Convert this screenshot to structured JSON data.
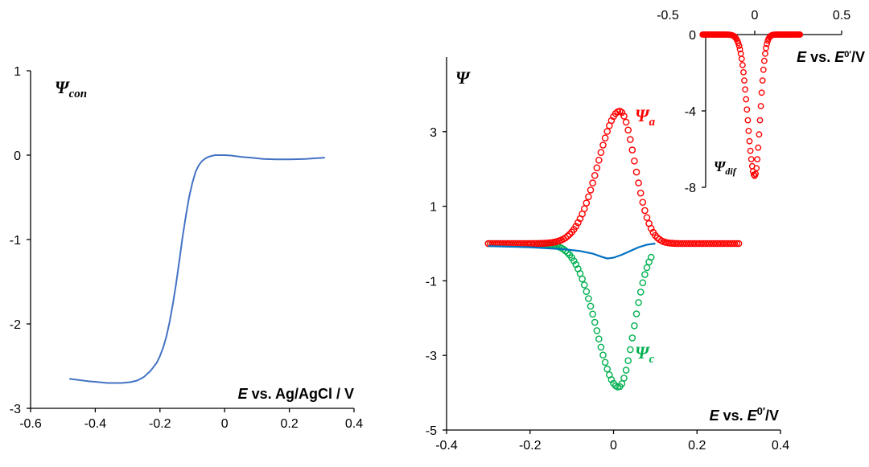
{
  "chart_data": [
    {
      "type": "line",
      "id": "left",
      "title": "",
      "ylabel_sym": "Ψ",
      "ylabel_sub": "con",
      "xlabel_e": "E",
      "xlabel_rest": " vs. Ag/AgCl / V",
      "xlim": [
        -0.6,
        0.4
      ],
      "ylim": [
        -3,
        1
      ],
      "xticks": [
        -0.6,
        -0.4,
        -0.2,
        0,
        0.2,
        0.4
      ],
      "xtick_labels": [
        "-0.6",
        "-0.4",
        "-0.2",
        "0",
        "0.2",
        "0.4"
      ],
      "yticks": [
        -3,
        -2,
        -1,
        0,
        1
      ],
      "ytick_labels": [
        "-3",
        "-2",
        "-1",
        "0",
        "1"
      ],
      "series": [
        {
          "name": "Psi_con",
          "color": "#4472c4",
          "x": [
            -0.48,
            -0.42,
            -0.36,
            -0.32,
            -0.29,
            -0.27,
            -0.25,
            -0.23,
            -0.21,
            -0.2,
            -0.19,
            -0.18,
            -0.17,
            -0.16,
            -0.15,
            -0.14,
            -0.13,
            -0.12,
            -0.11,
            -0.1,
            -0.09,
            -0.08,
            -0.07,
            -0.06,
            -0.05,
            -0.04,
            -0.03,
            -0.02,
            -0.01,
            0,
            0.02,
            0.05,
            0.08,
            0.12,
            0.16,
            0.2,
            0.25,
            0.31
          ],
          "values": [
            -2.65,
            -2.68,
            -2.7,
            -2.7,
            -2.69,
            -2.67,
            -2.63,
            -2.56,
            -2.46,
            -2.38,
            -2.28,
            -2.15,
            -1.97,
            -1.76,
            -1.52,
            -1.25,
            -0.97,
            -0.72,
            -0.5,
            -0.33,
            -0.2,
            -0.12,
            -0.07,
            -0.04,
            -0.02,
            -0.01,
            0.0,
            0.0,
            0.0,
            0.0,
            -0.005,
            -0.02,
            -0.03,
            -0.045,
            -0.05,
            -0.05,
            -0.045,
            -0.03
          ]
        }
      ]
    },
    {
      "type": "scatter",
      "id": "main",
      "ylabel_sym": "Ψ",
      "xlabel_e": "E",
      "xlabel_rest": " vs. ",
      "xlabel_e0": "E",
      "xlabel_sup": "0′",
      "xlabel_unit": "/V",
      "xlim": [
        -0.4,
        0.4
      ],
      "ylim": [
        -5,
        5
      ],
      "xticks": [
        -0.4,
        -0.2,
        0,
        0.2,
        0.4
      ],
      "xtick_labels": [
        "-0.4",
        "-0.2",
        "0",
        "0.2",
        "0.4"
      ],
      "yticks": [
        -5,
        -3,
        -1,
        1,
        3
      ],
      "ytick_labels": [
        "-5",
        "-3",
        "-1",
        "1",
        "3"
      ],
      "series": [
        {
          "name": "Psi_a",
          "label_sub": "a",
          "color": "#ff0000",
          "x_range": [
            -0.3,
            0.3
          ],
          "x_step": 0.005,
          "peak_x": 0.015,
          "peak_y": 3.55,
          "half_width_left": 0.052,
          "half_width_right": 0.036
        },
        {
          "name": "Psi_c",
          "label_sub": "c",
          "color": "#00b050",
          "x_range": [
            -0.3,
            0.09
          ],
          "x_step": 0.005,
          "peak_x": 0.012,
          "peak_y": -3.85,
          "half_width_left": 0.052,
          "half_width_right": 0.036
        },
        {
          "name": "Psi_dif_main",
          "color": "#0070c0",
          "x": [
            -0.3,
            -0.2,
            -0.12,
            -0.08,
            -0.05,
            -0.03,
            -0.015,
            0.0,
            0.02,
            0.04,
            0.06,
            0.08,
            0.1
          ],
          "values": [
            -0.07,
            -0.1,
            -0.15,
            -0.2,
            -0.27,
            -0.35,
            -0.4,
            -0.38,
            -0.3,
            -0.2,
            -0.1,
            -0.03,
            0.0
          ]
        }
      ]
    },
    {
      "type": "scatter",
      "id": "inset",
      "ylabel_sym": "Ψ",
      "ylabel_sub": "dif",
      "xlabel_e": "E",
      "xlabel_rest": " vs. ",
      "xlabel_e0": "E",
      "xlabel_sup": "0′",
      "xlabel_unit": "/V",
      "xlim": [
        -0.5,
        0.5
      ],
      "ylim": [
        -8,
        0
      ],
      "xticks": [
        -0.5,
        0,
        0.5
      ],
      "xtick_labels": [
        "-0.5",
        "0",
        "0.5"
      ],
      "yticks": [
        -8,
        -4,
        0
      ],
      "ytick_labels": [
        "-8",
        "-4",
        "0"
      ],
      "series": [
        {
          "name": "Psi_dif",
          "color": "#ff0000",
          "x_range": [
            -0.3,
            0.26
          ],
          "x_step": 0.005,
          "peak_x": 0.0,
          "peak_y": -7.4,
          "half_width_left": 0.04,
          "half_width_right": 0.03
        }
      ]
    }
  ]
}
